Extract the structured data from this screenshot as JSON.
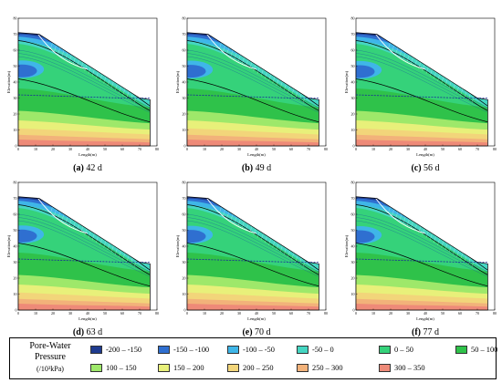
{
  "chart_data": {
    "type": "contour",
    "x_ticks": [
      "0",
      "10",
      "20",
      "30",
      "40",
      "50",
      "60",
      "70",
      "80"
    ],
    "y_ticks": [
      "0",
      "10",
      "20",
      "30",
      "40",
      "50",
      "60",
      "70",
      "80"
    ],
    "xlabel": "Length(m)",
    "ylabel": "Elevation(m)",
    "xlim": [
      0,
      80
    ],
    "ylim": [
      0,
      80
    ],
    "slope_profile": {
      "x": [
        0,
        12,
        70,
        76
      ],
      "y": [
        71,
        70,
        30,
        29
      ]
    },
    "phreatic_line": {
      "x": [
        0,
        30,
        60,
        76
      ],
      "y": [
        32,
        31,
        30,
        30
      ]
    },
    "legend_title": "Pore-Water Pressure",
    "legend_unit": "(/10³kPa)",
    "legend": [
      {
        "label": "-200 – -150",
        "color": "#1f3b8f"
      },
      {
        "label": "-150 – -100",
        "color": "#2f6fd0"
      },
      {
        "label": "-100 – -50",
        "color": "#3fb6e8"
      },
      {
        "label": "-50 – 0",
        "color": "#45d6c2"
      },
      {
        "label": "0 – 50",
        "color": "#35d27a"
      },
      {
        "label": "50 – 100",
        "color": "#2fc24a"
      },
      {
        "label": "100 – 150",
        "color": "#9ee86a"
      },
      {
        "label": "150 – 200",
        "color": "#e8f07a"
      },
      {
        "label": "200 – 250",
        "color": "#f2d57a"
      },
      {
        "label": "250 – 300",
        "color": "#f2b27a"
      },
      {
        "label": "300 – 350",
        "color": "#ee8a78"
      }
    ],
    "panels": [
      {
        "id": "a",
        "letter": "(a)",
        "time": "42 d"
      },
      {
        "id": "b",
        "letter": "(b)",
        "time": "49 d"
      },
      {
        "id": "c",
        "letter": "(c)",
        "time": "56 d"
      },
      {
        "id": "d",
        "letter": "(d)",
        "time": "63 d"
      },
      {
        "id": "e",
        "letter": "(e)",
        "time": "70 d"
      },
      {
        "id": "f",
        "letter": "(f)",
        "time": "77 d"
      }
    ]
  }
}
